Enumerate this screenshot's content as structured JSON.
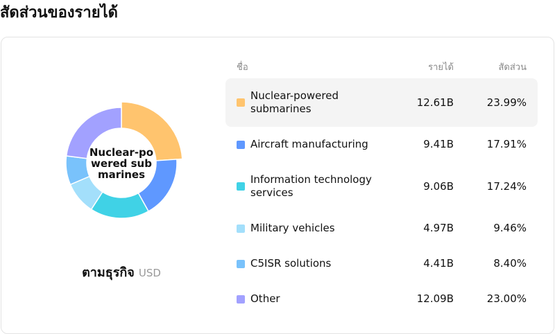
{
  "title": "สัดส่วนของรายได้",
  "caption": "ตามธุรกิจ",
  "currency": "USD",
  "table": {
    "headers": [
      "ชื่อ",
      "รายได้",
      "สัดส่วน"
    ],
    "revenue": [
      "12.61B",
      "9.41B",
      "9.06B",
      "4.97B",
      "4.41B",
      "12.09B"
    ]
  },
  "chart_data": {
    "type": "pie",
    "donut": true,
    "center_label": "Nuclear-powered submarines",
    "categories": [
      "Nuclear-powered submarines",
      "Aircraft manufacturing",
      "Information technology services",
      "Military vehicles",
      "C5ISR solutions",
      "Other"
    ],
    "values": [
      23.99,
      17.91,
      17.24,
      9.46,
      8.4,
      23.0
    ],
    "value_labels": [
      "23.99%",
      "17.91%",
      "17.24%",
      "9.46%",
      "8.40%",
      "23.00%"
    ],
    "colors": [
      "#ffc46e",
      "#5f98ff",
      "#40d2e6",
      "#a3dffb",
      "#79c2fb",
      "#a2a1ff"
    ]
  }
}
